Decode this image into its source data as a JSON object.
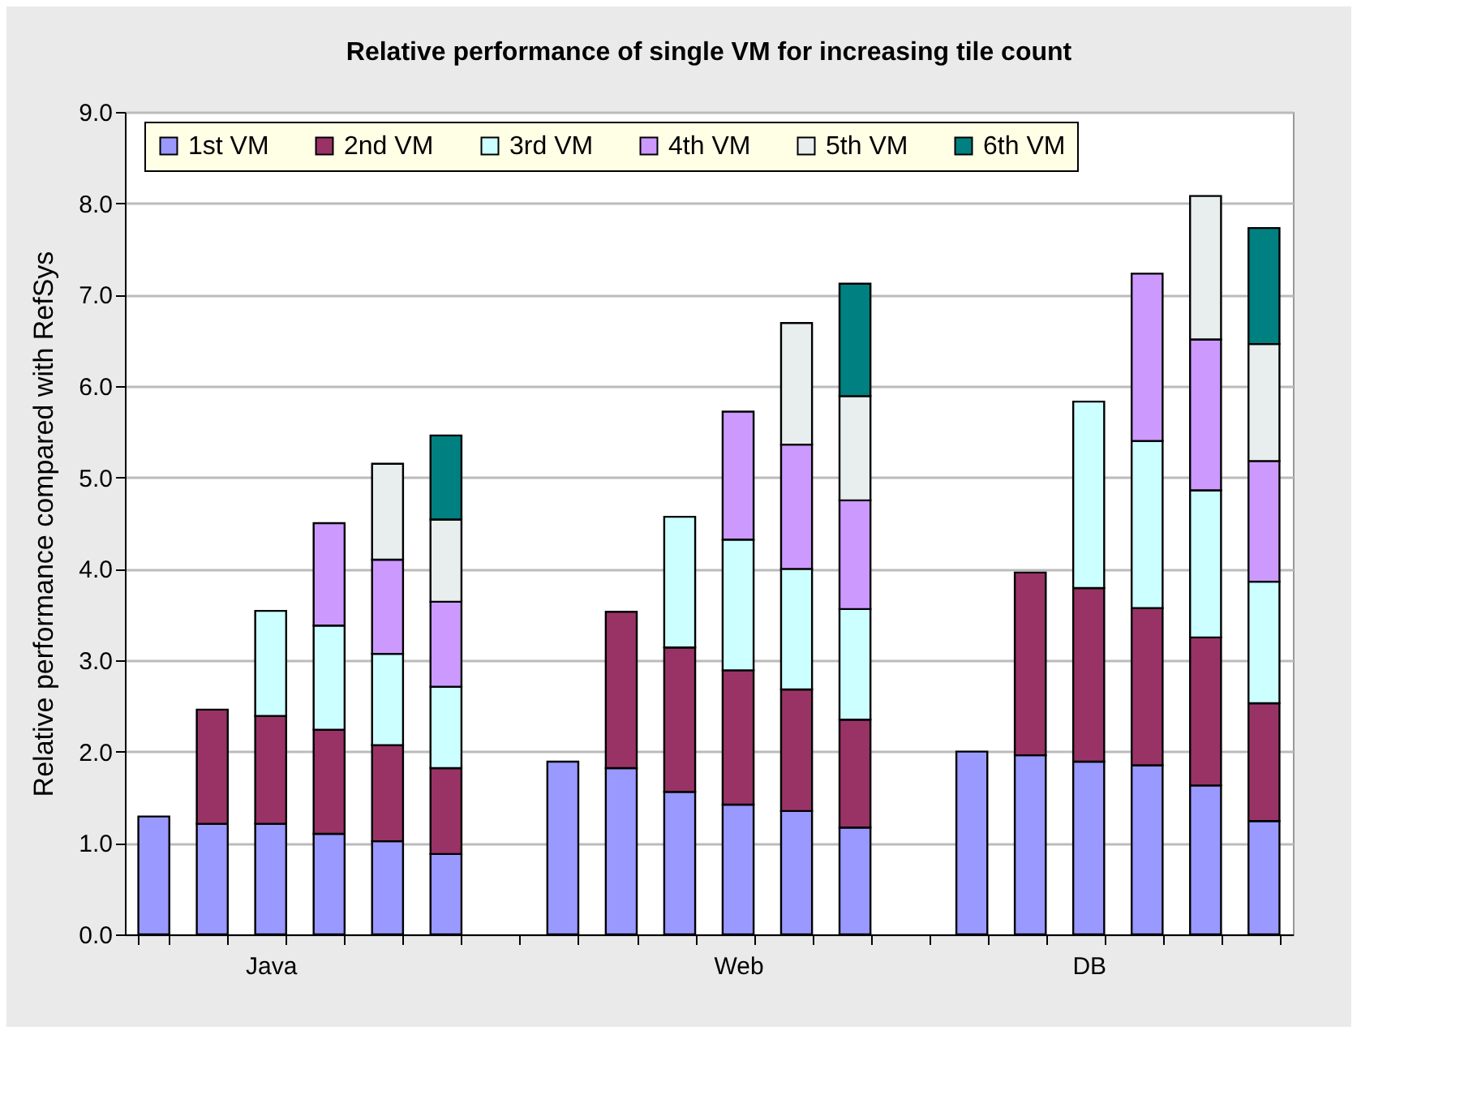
{
  "chart_data": {
    "type": "bar",
    "title": "Relative performance of single VM for increasing tile count",
    "ylabel": "Relative performance compared with RefSys",
    "categories": [
      null,
      null,
      "Java",
      null,
      null,
      null,
      null,
      null,
      null,
      null,
      "Web",
      null,
      null,
      null,
      null,
      null,
      "DB",
      null,
      null,
      null
    ],
    "stacked": true,
    "series": [
      {
        "name": "1st VM",
        "color": "#9999ff",
        "values": [
          1.29,
          1.21,
          1.21,
          1.1,
          1.02,
          0.88,
          null,
          1.89,
          1.82,
          1.56,
          1.42,
          1.35,
          1.17,
          null,
          2.0,
          1.96,
          1.89,
          1.85,
          1.63,
          1.24
        ]
      },
      {
        "name": "2nd VM",
        "color": "#993366",
        "values": [
          null,
          1.25,
          1.18,
          1.14,
          1.05,
          0.94,
          null,
          null,
          1.71,
          1.58,
          1.47,
          1.33,
          1.18,
          null,
          null,
          2.0,
          1.9,
          1.72,
          1.62,
          1.29
        ]
      },
      {
        "name": "3rd VM",
        "color": "#ccffff",
        "values": [
          null,
          null,
          1.15,
          1.14,
          1.0,
          0.89,
          null,
          null,
          null,
          1.43,
          1.43,
          1.32,
          1.21,
          null,
          null,
          null,
          2.04,
          1.83,
          1.61,
          1.33
        ]
      },
      {
        "name": "4th VM",
        "color": "#cc99ff",
        "values": [
          null,
          null,
          null,
          1.12,
          1.03,
          0.93,
          null,
          null,
          null,
          null,
          1.4,
          1.36,
          1.19,
          null,
          null,
          null,
          null,
          1.83,
          1.65,
          1.32
        ]
      },
      {
        "name": "5th VM",
        "color": "#e8eeee",
        "values": [
          null,
          null,
          null,
          null,
          1.05,
          0.9,
          null,
          null,
          null,
          null,
          null,
          1.33,
          1.14,
          null,
          null,
          null,
          null,
          null,
          1.57,
          1.28
        ]
      },
      {
        "name": "6th VM",
        "color": "#008080",
        "values": [
          null,
          null,
          null,
          null,
          null,
          0.92,
          null,
          null,
          null,
          null,
          null,
          null,
          1.23,
          null,
          null,
          null,
          null,
          null,
          null,
          1.27
        ]
      }
    ],
    "ylim": [
      0,
      9
    ],
    "yticks": [
      {
        "value": 0,
        "label": "0.0"
      },
      {
        "value": 1,
        "label": "1.0"
      },
      {
        "value": 2,
        "label": "2.0"
      },
      {
        "value": 3,
        "label": "3.0"
      },
      {
        "value": 4,
        "label": "4.0"
      },
      {
        "value": 5,
        "label": "5.0"
      },
      {
        "value": 6,
        "label": "6.0"
      },
      {
        "value": 7,
        "label": "7.0"
      },
      {
        "value": 8,
        "label": "8.0"
      },
      {
        "value": 9,
        "label": "9.0"
      }
    ],
    "grid": "y",
    "legend": "top"
  }
}
